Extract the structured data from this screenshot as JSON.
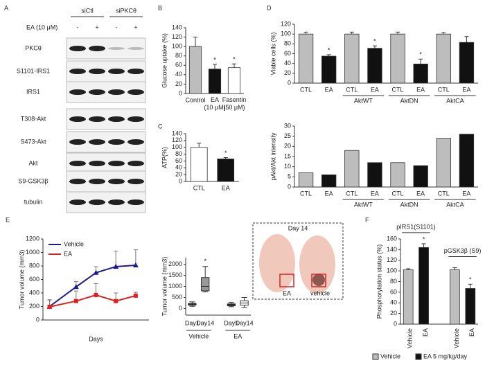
{
  "blot": {
    "panel": "A",
    "groups": [
      "siCtl",
      "siPKCθ"
    ],
    "treatment": "EA (10 μM)",
    "signs": [
      "-",
      "+",
      "-",
      "+"
    ],
    "rows": [
      "PKCθ",
      "S1101-IRS1",
      "IRS1",
      "T308-Akt",
      "S473-Akt",
      "Akt",
      "S9-GSK3β",
      "tubulin"
    ]
  },
  "inset": {
    "title": "Day 14",
    "labels": [
      "EA",
      "vehicle"
    ]
  },
  "chart_data": [
    {
      "type": "bar",
      "panel": "B",
      "ylabel": "Glucose uptake (%)",
      "categories": [
        "Control",
        "EA (10 μM)",
        "Fasentin (50 μM)"
      ],
      "values": [
        100,
        52,
        55
      ],
      "errors": [
        20,
        10,
        8
      ],
      "colors": [
        "#bdbdbd",
        "#111111",
        "#ffffff"
      ],
      "stars": [
        null,
        "*",
        "*"
      ],
      "ylim": [
        0,
        140
      ],
      "yticks": [
        0,
        20,
        40,
        60,
        80,
        100,
        120,
        140
      ]
    },
    {
      "type": "bar",
      "panel": "C",
      "ylabel": "ATP(%)",
      "categories": [
        "CTL",
        "EA"
      ],
      "values": [
        100,
        66
      ],
      "errors": [
        12,
        4
      ],
      "colors": [
        "#ffffff",
        "#111111"
      ],
      "stars": [
        null,
        "*"
      ],
      "ylim": [
        0,
        140
      ],
      "yticks": [
        0,
        20,
        40,
        60,
        80,
        100,
        120,
        140
      ]
    },
    {
      "type": "bar",
      "panel": "D",
      "ylabel": "Viable cells (%)",
      "categories": [
        "CTL",
        "EA",
        "CTL",
        "EA",
        "CTL",
        "EA",
        "CTL",
        "EA"
      ],
      "groups": [
        null,
        "AktWT",
        "AktDN",
        "AktCA"
      ],
      "group_position": "bottom",
      "values": [
        100,
        55,
        100,
        71,
        100,
        39,
        100,
        83
      ],
      "errors": [
        4,
        3,
        4,
        5,
        4,
        10,
        3,
        12
      ],
      "colors": [
        "#bdbdbd",
        "#111111",
        "#bdbdbd",
        "#111111",
        "#bdbdbd",
        "#111111",
        "#bdbdbd",
        "#111111"
      ],
      "stars": [
        null,
        "*",
        null,
        "*",
        null,
        "*",
        null,
        null
      ],
      "ylim": [
        0,
        120
      ],
      "yticks": [
        0,
        20,
        40,
        60,
        80,
        100,
        120
      ]
    },
    {
      "type": "bar",
      "ylabel": "pAkt/Akt intensity",
      "categories": [
        "CTL",
        "EA",
        "CTL",
        "EA",
        "CTL",
        "EA",
        "CTL",
        "EA"
      ],
      "groups": [
        null,
        "AktWT",
        "AktDN",
        "AktCA"
      ],
      "group_position": "bottom",
      "values": [
        7,
        6,
        18,
        12,
        12,
        10.5,
        24,
        26
      ],
      "colors": [
        "#bdbdbd",
        "#111111",
        "#bdbdbd",
        "#111111",
        "#bdbdbd",
        "#111111",
        "#bdbdbd",
        "#111111"
      ],
      "ylim": [
        0,
        30
      ],
      "yticks": [
        0,
        5,
        10,
        15,
        20,
        25,
        30
      ]
    },
    {
      "type": "line",
      "panel": "E",
      "xlabel": "Days",
      "ylabel": "Tumor volume (mm3)",
      "x": [
        1,
        5,
        8,
        11,
        14
      ],
      "xlim": [
        0,
        16
      ],
      "series": [
        {
          "name": "Vehicle",
          "color": "#1a1a8c",
          "marker": "triangle",
          "values": [
            200,
            490,
            700,
            790,
            810
          ],
          "errors": [
            100,
            80,
            90,
            230,
            230
          ]
        },
        {
          "name": "EA",
          "color": "#e02020",
          "marker": "square",
          "values": [
            195,
            280,
            370,
            280,
            360
          ],
          "errors": [
            100,
            150,
            170,
            120,
            50
          ]
        }
      ],
      "ylim": [
        0,
        1200
      ],
      "yticks": [
        0,
        200,
        400,
        600,
        800,
        1000,
        1200
      ]
    },
    {
      "type": "box",
      "ylabel": "Tumor volume (mm3)",
      "categories": [
        "Day1",
        "Day14",
        "Day1",
        "Day14"
      ],
      "groups": [
        "Vehicle",
        "EA"
      ],
      "colors": [
        "#222222",
        "#999999",
        "#222222",
        "#ffffff"
      ],
      "stars": [
        null,
        "*",
        null,
        null
      ],
      "boxes": [
        {
          "min": 100,
          "q1": 150,
          "median": 190,
          "q3": 230,
          "max": 300
        },
        {
          "min": 750,
          "q1": 800,
          "median": 1000,
          "q3": 1400,
          "max": 1900
        },
        {
          "min": 80,
          "q1": 120,
          "median": 160,
          "q3": 210,
          "max": 280
        },
        {
          "min": 50,
          "q1": 150,
          "median": 250,
          "q3": 350,
          "max": 500
        }
      ],
      "ylim": [
        -300,
        2300
      ],
      "yticks": [
        0,
        500,
        1000,
        1500,
        2000
      ]
    },
    {
      "type": "bar",
      "panel": "F",
      "ylabel": "Phosphorylation status (%)",
      "categories": [
        "Vehicle",
        "EA",
        "Vehicle",
        "EA"
      ],
      "groups": [
        "pIRS1(S1101)",
        "pGSK3β (S9)"
      ],
      "group_position": "top",
      "rotate_labels": true,
      "values": [
        102,
        144,
        102,
        67
      ],
      "errors": [
        2,
        7,
        4,
        8
      ],
      "colors": [
        "#bdbdbd",
        "#111111",
        "#bdbdbd",
        "#111111"
      ],
      "stars": [
        null,
        "*",
        null,
        "*"
      ],
      "legend": [
        {
          "name": "Vehicle",
          "color": "#bdbdbd"
        },
        {
          "name": "EA 5 mg/kg/day",
          "color": "#111111"
        }
      ],
      "ylim": [
        0,
        160
      ],
      "yticks": [
        0,
        20,
        40,
        60,
        80,
        100,
        120,
        140,
        160
      ]
    }
  ]
}
